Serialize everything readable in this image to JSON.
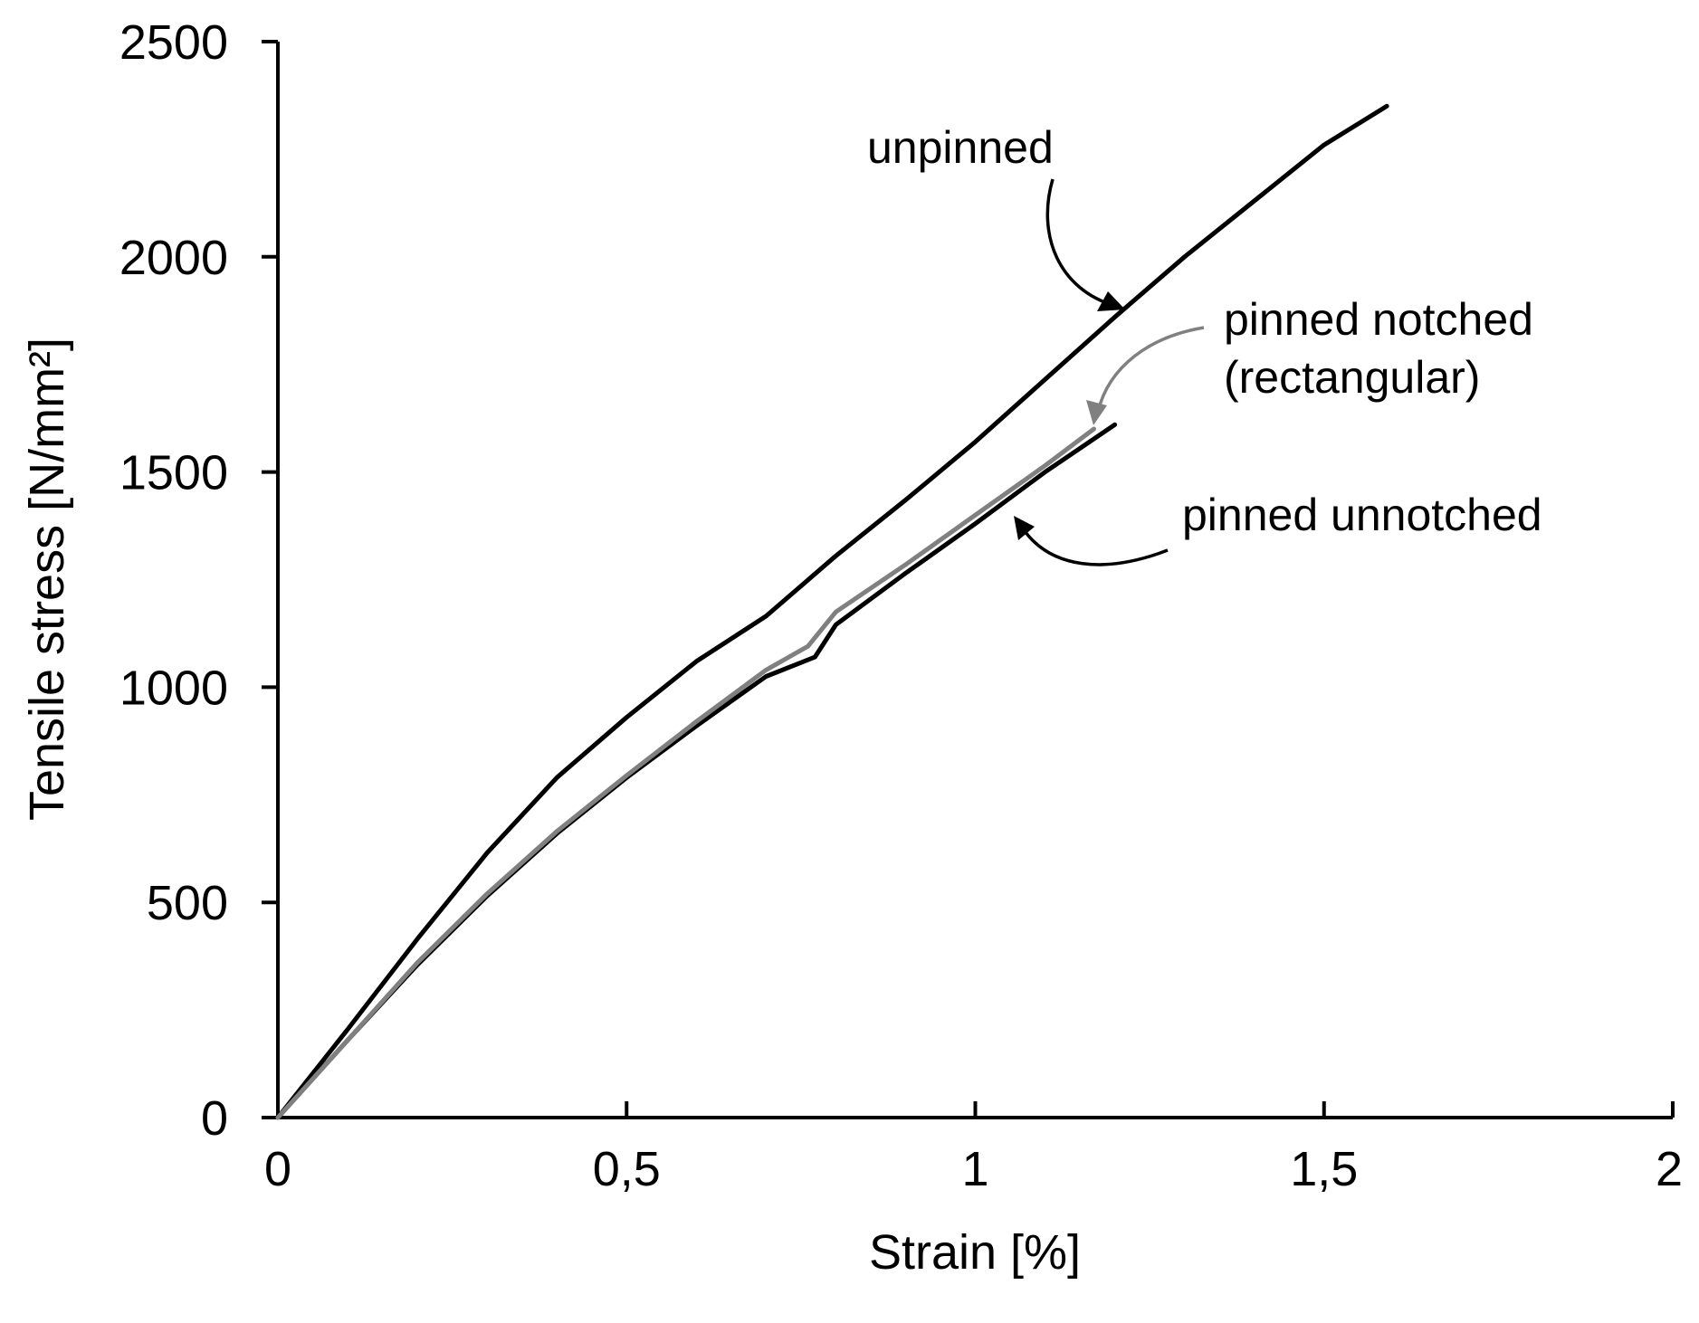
{
  "chart_data": {
    "type": "line",
    "xlabel": "Strain [%]",
    "ylabel": "Tensile stress [N/mm²]",
    "xlim": [
      0,
      2
    ],
    "ylim": [
      0,
      2500
    ],
    "x_ticks": [
      {
        "value": 0,
        "label": "0"
      },
      {
        "value": 0.5,
        "label": "0,5"
      },
      {
        "value": 1,
        "label": "1"
      },
      {
        "value": 1.5,
        "label": "1,5"
      },
      {
        "value": 2,
        "label": "2"
      }
    ],
    "y_ticks": [
      {
        "value": 0,
        "label": "0"
      },
      {
        "value": 500,
        "label": "500"
      },
      {
        "value": 1000,
        "label": "1000"
      },
      {
        "value": 1500,
        "label": "1500"
      },
      {
        "value": 2000,
        "label": "2000"
      },
      {
        "value": 2500,
        "label": "2500"
      }
    ],
    "grid": false,
    "legend": "none",
    "series": [
      {
        "name": "unpinned",
        "color": "#000000",
        "points": [
          [
            0,
            0
          ],
          [
            0.1,
            205
          ],
          [
            0.2,
            415
          ],
          [
            0.3,
            615
          ],
          [
            0.4,
            790
          ],
          [
            0.5,
            930
          ],
          [
            0.6,
            1060
          ],
          [
            0.7,
            1165
          ],
          [
            0.8,
            1305
          ],
          [
            0.9,
            1435
          ],
          [
            1.0,
            1570
          ],
          [
            1.1,
            1715
          ],
          [
            1.2,
            1860
          ],
          [
            1.3,
            2000
          ],
          [
            1.4,
            2130
          ],
          [
            1.5,
            2260
          ],
          [
            1.59,
            2350
          ]
        ]
      },
      {
        "name": "pinned notched (rectangular)",
        "color": "#808080",
        "points": [
          [
            0,
            0
          ],
          [
            0.1,
            180
          ],
          [
            0.2,
            360
          ],
          [
            0.3,
            520
          ],
          [
            0.4,
            665
          ],
          [
            0.5,
            795
          ],
          [
            0.6,
            920
          ],
          [
            0.7,
            1040
          ],
          [
            0.76,
            1095
          ],
          [
            0.8,
            1175
          ],
          [
            0.9,
            1285
          ],
          [
            1.0,
            1400
          ],
          [
            1.1,
            1515
          ],
          [
            1.17,
            1600
          ]
        ]
      },
      {
        "name": "pinned unnotched",
        "color": "#000000",
        "points": [
          [
            0,
            0
          ],
          [
            0.1,
            180
          ],
          [
            0.2,
            355
          ],
          [
            0.3,
            515
          ],
          [
            0.4,
            660
          ],
          [
            0.5,
            790
          ],
          [
            0.6,
            910
          ],
          [
            0.7,
            1025
          ],
          [
            0.77,
            1070
          ],
          [
            0.8,
            1145
          ],
          [
            0.9,
            1265
          ],
          [
            1.0,
            1380
          ],
          [
            1.1,
            1500
          ],
          [
            1.2,
            1610
          ]
        ]
      }
    ],
    "annotations": [
      {
        "text": "unpinned",
        "series": "unpinned"
      },
      {
        "text": "pinned notched",
        "series": "pinned notched (rectangular)"
      },
      {
        "text": "(rectangular)",
        "series": "pinned notched (rectangular)"
      },
      {
        "text": "pinned unnotched",
        "series": "pinned unnotched"
      }
    ]
  }
}
